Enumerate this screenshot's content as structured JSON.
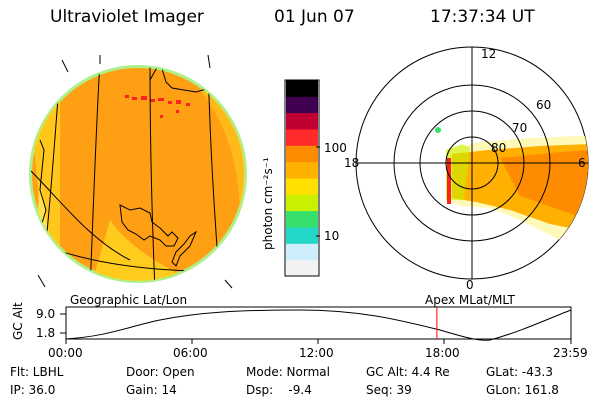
{
  "header": {
    "instrument": "Ultraviolet Imager",
    "date": "01 Jun 07",
    "time": "17:37:34 UT"
  },
  "colorbar": {
    "unit_label": "photon cm⁻²s⁻¹",
    "ticks": [
      "100",
      "10"
    ],
    "palette": [
      "#f2f2f2",
      "#cdeffd",
      "#22d6c8",
      "#36e06a",
      "#c8f000",
      "#ffe000",
      "#ffb000",
      "#ff8c00",
      "#ff2a2a",
      "#c00030",
      "#400050",
      "#000000"
    ]
  },
  "polar": {
    "mlt_labels": [
      "12",
      "18",
      "6",
      "0"
    ],
    "lat_labels": [
      "60",
      "70",
      "80"
    ]
  },
  "timeline": {
    "left_label": "Geographic Lat/Lon",
    "right_label": "Apex MLat/MLT",
    "y_axis_label": "GC Alt",
    "y_ticks": [
      "9.0",
      "1.8"
    ],
    "x_ticks": [
      "00:00",
      "06:00",
      "12:00",
      "18:00",
      "23:59"
    ],
    "current_time_fraction": 0.7344
  },
  "status": {
    "flt": "Flt: LBHL",
    "door": "Door: Open",
    "mode": "Mode: Normal",
    "gc_alt": "GC Alt: 4.4 Re",
    "glat": "GLat: -43.3",
    "ip": "IP: 36.0",
    "gain": "Gain: 14",
    "dsp": "Dsp:    -9.4",
    "seq": "Seq: 39",
    "glon": "GLon: 161.8"
  },
  "colors": {
    "disk_main": "#ff9f14",
    "disk_light": "#ffcf1e",
    "limb": "#aef08a",
    "hotspot": "#ff2020",
    "cursor": "#ff0000"
  }
}
